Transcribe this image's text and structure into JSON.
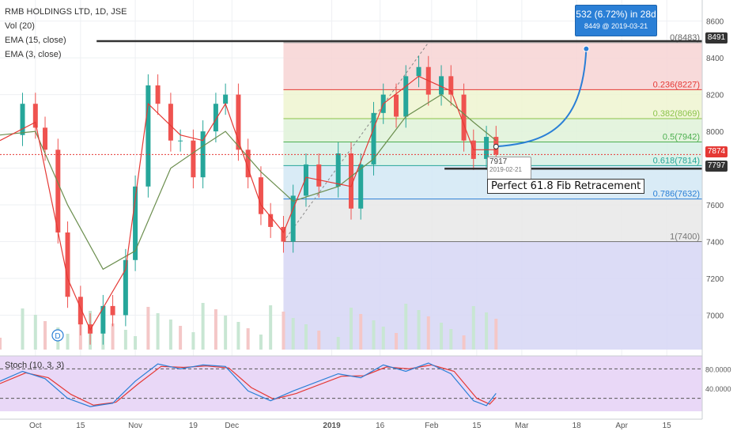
{
  "header": {
    "title": "RMB HOLDINGS LTD, 1D, JSE",
    "indicators": [
      "Vol (20)",
      "EMA (15, close)",
      "EMA (3, close)"
    ]
  },
  "stoch_label": "Stoch (10, 3, 3)",
  "callout": {
    "line1": "532 (6.72%) in 28d",
    "line2": "8449 @ 2019-03-21"
  },
  "annotation": "Perfect 61.8 Fib Retracement",
  "tooltip": {
    "value": "7917",
    "date": "2019-02-21"
  },
  "price_tags": [
    {
      "label": "8491",
      "value": 8491,
      "color": "#333333"
    },
    {
      "label": "7874",
      "value": 7874,
      "color": "#e53935"
    },
    {
      "label": "7797",
      "value": 7797,
      "color": "#333333"
    }
  ],
  "colors": {
    "up": "#26a69a",
    "down": "#ef5350",
    "ema_fast": "#e53935",
    "ema_slow": "#6b8e4e",
    "stoch_k": "#2a7fd6",
    "stoch_d": "#e53935",
    "stoch_bg": "#e9d8f7"
  },
  "chart_data": {
    "type": "candlestick",
    "title": "RMB HOLDINGS LTD, 1D, JSE",
    "x_range": [
      "2018-09-20",
      "2019-04-26"
    ],
    "y_range": [
      6800,
      8650
    ],
    "y_ticks": [
      7000,
      7200,
      7400,
      7600,
      7800,
      8000,
      8200,
      8400,
      8600
    ],
    "x_ticks": [
      "Oct",
      "15",
      "Nov",
      "19",
      "Dec",
      "2019",
      "16",
      "Feb",
      "15",
      "Mar",
      "18",
      "Apr",
      "15"
    ],
    "x_tick_dates": [
      "2018-10-01",
      "2018-10-15",
      "2018-11-01",
      "2018-11-19",
      "2018-12-01",
      "2019-01-01",
      "2019-01-16",
      "2019-02-01",
      "2019-02-15",
      "2019-03-01",
      "2019-03-18",
      "2019-04-01",
      "2019-04-15"
    ],
    "close_path": [
      [
        "2018-09-20",
        7980
      ],
      [
        "2018-09-27",
        8150
      ],
      [
        "2018-10-01",
        8020
      ],
      [
        "2018-10-04",
        7900
      ],
      [
        "2018-10-08",
        7450
      ],
      [
        "2018-10-11",
        7100
      ],
      [
        "2018-10-15",
        6950
      ],
      [
        "2018-10-18",
        6900
      ],
      [
        "2018-10-22",
        7050
      ],
      [
        "2018-10-25",
        7000
      ],
      [
        "2018-10-29",
        7300
      ],
      [
        "2018-11-01",
        7700
      ],
      [
        "2018-11-05",
        8250
      ],
      [
        "2018-11-08",
        8150
      ],
      [
        "2018-11-12",
        7950
      ],
      [
        "2018-11-15",
        7950
      ],
      [
        "2018-11-19",
        7750
      ],
      [
        "2018-11-22",
        8000
      ],
      [
        "2018-11-26",
        8150
      ],
      [
        "2018-11-29",
        8200
      ],
      [
        "2018-12-03",
        7900
      ],
      [
        "2018-12-06",
        7750
      ],
      [
        "2018-12-10",
        7550
      ],
      [
        "2018-12-13",
        7480
      ],
      [
        "2018-12-17",
        7400
      ],
      [
        "2018-12-20",
        7650
      ],
      [
        "2018-12-24",
        7820
      ],
      [
        "2018-12-28",
        7700
      ],
      [
        "2019-01-03",
        7880
      ],
      [
        "2019-01-07",
        7580
      ],
      [
        "2019-01-10",
        7820
      ],
      [
        "2019-01-14",
        8100
      ],
      [
        "2019-01-17",
        8200
      ],
      [
        "2019-01-21",
        8080
      ],
      [
        "2019-01-24",
        8300
      ],
      [
        "2019-01-28",
        8350
      ],
      [
        "2019-01-31",
        8200
      ],
      [
        "2019-02-04",
        8300
      ],
      [
        "2019-02-07",
        8200
      ],
      [
        "2019-02-11",
        7950
      ],
      [
        "2019-02-14",
        7850
      ],
      [
        "2019-02-18",
        7970
      ],
      [
        "2019-02-21",
        7874
      ]
    ],
    "ema_fast_path": [
      [
        "2018-09-20",
        7950
      ],
      [
        "2018-10-01",
        8050
      ],
      [
        "2018-10-11",
        7200
      ],
      [
        "2018-10-18",
        6920
      ],
      [
        "2018-10-29",
        7250
      ],
      [
        "2018-11-05",
        8150
      ],
      [
        "2018-11-15",
        7980
      ],
      [
        "2018-11-22",
        7950
      ],
      [
        "2018-11-29",
        8150
      ],
      [
        "2018-12-10",
        7600
      ],
      [
        "2018-12-17",
        7450
      ],
      [
        "2018-12-24",
        7750
      ],
      [
        "2019-01-07",
        7700
      ],
      [
        "2019-01-17",
        8150
      ],
      [
        "2019-01-28",
        8300
      ],
      [
        "2019-02-07",
        8220
      ],
      [
        "2019-02-14",
        7900
      ],
      [
        "2019-02-21",
        7900
      ]
    ],
    "ema_slow_path": [
      [
        "2018-09-20",
        7980
      ],
      [
        "2018-10-01",
        8000
      ],
      [
        "2018-10-11",
        7600
      ],
      [
        "2018-10-22",
        7250
      ],
      [
        "2018-11-01",
        7350
      ],
      [
        "2018-11-12",
        7800
      ],
      [
        "2018-11-22",
        7920
      ],
      [
        "2018-11-29",
        8000
      ],
      [
        "2018-12-10",
        7780
      ],
      [
        "2018-12-20",
        7620
      ],
      [
        "2019-01-03",
        7700
      ],
      [
        "2019-01-14",
        7850
      ],
      [
        "2019-01-24",
        8080
      ],
      [
        "2019-02-04",
        8200
      ],
      [
        "2019-02-14",
        8050
      ],
      [
        "2019-02-21",
        7950
      ]
    ],
    "stoch_k_path": [
      [
        "2018-09-20",
        55
      ],
      [
        "2018-09-27",
        75
      ],
      [
        "2018-10-04",
        60
      ],
      [
        "2018-10-11",
        20
      ],
      [
        "2018-10-18",
        3
      ],
      [
        "2018-10-25",
        10
      ],
      [
        "2018-11-01",
        55
      ],
      [
        "2018-11-08",
        90
      ],
      [
        "2018-11-15",
        80
      ],
      [
        "2018-11-22",
        88
      ],
      [
        "2018-11-29",
        85
      ],
      [
        "2018-12-06",
        35
      ],
      [
        "2018-12-13",
        15
      ],
      [
        "2018-12-20",
        35
      ],
      [
        "2019-01-03",
        70
      ],
      [
        "2019-01-10",
        62
      ],
      [
        "2019-01-17",
        88
      ],
      [
        "2019-01-24",
        75
      ],
      [
        "2019-01-31",
        92
      ],
      [
        "2019-02-07",
        70
      ],
      [
        "2019-02-14",
        15
      ],
      [
        "2019-02-18",
        5
      ],
      [
        "2019-02-21",
        30
      ]
    ],
    "stoch_d_path": [
      [
        "2018-09-20",
        50
      ],
      [
        "2018-09-28",
        72
      ],
      [
        "2018-10-05",
        62
      ],
      [
        "2018-10-12",
        28
      ],
      [
        "2018-10-19",
        6
      ],
      [
        "2018-10-26",
        12
      ],
      [
        "2018-11-02",
        50
      ],
      [
        "2018-11-09",
        85
      ],
      [
        "2018-11-16",
        83
      ],
      [
        "2018-11-23",
        86
      ],
      [
        "2018-11-30",
        82
      ],
      [
        "2018-12-07",
        42
      ],
      [
        "2018-12-14",
        18
      ],
      [
        "2018-12-21",
        30
      ],
      [
        "2019-01-04",
        65
      ],
      [
        "2019-01-11",
        66
      ],
      [
        "2019-01-18",
        84
      ],
      [
        "2019-01-25",
        80
      ],
      [
        "2019-02-01",
        88
      ],
      [
        "2019-02-08",
        75
      ],
      [
        "2019-02-15",
        20
      ],
      [
        "2019-02-19",
        8
      ],
      [
        "2019-02-21",
        22
      ]
    ],
    "stoch_ticks": [
      {
        "label": "80.0000",
        "value": 80
      },
      {
        "label": "40.0000",
        "value": 40
      }
    ],
    "fib": {
      "start": "2018-12-17",
      "end": "2019-04-26",
      "levels": [
        {
          "label": "0(8483)",
          "value": 8483,
          "fill": "#f7d4d4",
          "line": "#999999"
        },
        {
          "label": "0.236(8227)",
          "value": 8227,
          "fill": "#eef5d0",
          "line": "#e53935"
        },
        {
          "label": "0.382(8069)",
          "value": 8069,
          "fill": "#dff2d8",
          "line": "#8bc34a"
        },
        {
          "label": "0.5(7942)",
          "value": 7942,
          "fill": "#d6f0e4",
          "line": "#4caf50"
        },
        {
          "label": "0.618(7814)",
          "value": 7814,
          "fill": "#d2e8f4",
          "line": "#26a69a"
        },
        {
          "label": "0.786(7632)",
          "value": 7632,
          "fill": "#e8e8e8",
          "line": "#2a7fd6"
        },
        {
          "label": "1(7400)",
          "value": 7400,
          "fill": "#d6d6f4",
          "line": "#777777"
        }
      ]
    },
    "resistance": {
      "value": 8491,
      "start": "2018-10-20",
      "end": "2019-04-26"
    },
    "support": {
      "value": 7797,
      "start": "2019-02-05",
      "end": "2019-04-26"
    },
    "projection": {
      "from_date": "2019-02-21",
      "from_value": 7917,
      "to_date": "2019-03-21",
      "to_value": 8449
    }
  }
}
